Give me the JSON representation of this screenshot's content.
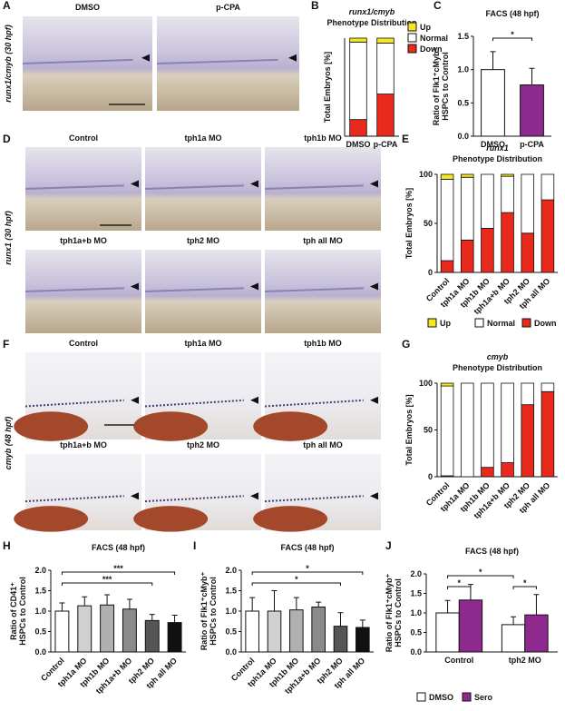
{
  "panel_letters": [
    "A",
    "B",
    "C",
    "D",
    "E",
    "F",
    "G",
    "H",
    "I",
    "J"
  ],
  "image_panels": [
    {
      "ylabel": "runx1/cmyb (30 hpf)",
      "labels": [
        "DMSO",
        "p-CPA"
      ]
    },
    {
      "ylabel": "runx1 (30 hpf)",
      "labels": [
        "Control",
        "tph1a MO",
        "tph1b MO",
        "tph1a+b MO",
        "tph2 MO",
        "tph all MO"
      ]
    },
    {
      "ylabel": "cmyb (48 hpf)",
      "labels": [
        "Control",
        "tph1a MO",
        "tph1b MO",
        "tph1a+b MO",
        "tph2 MO",
        "tph all MO"
      ]
    }
  ],
  "chart_data": [
    {
      "type": "stacked_bar",
      "title": "runx1/cmyb",
      "subtitle": "Phenotype Distribution",
      "ylabel": "Total Embryos [%]",
      "categories": [
        "DMSO",
        "p-CPA"
      ],
      "series": [
        {
          "name": "Down",
          "color": "#e8291c",
          "values": [
            17,
            43
          ]
        },
        {
          "name": "Normal",
          "color": "#ffffff",
          "values": [
            79,
            52
          ]
        },
        {
          "name": "Up",
          "color": "#f5e61e",
          "values": [
            4,
            5
          ]
        }
      ],
      "ylim": [
        0,
        100
      ],
      "legend": "right"
    },
    {
      "type": "bar",
      "title": "FACS (48 hpf)",
      "ylabel": [
        "Ratio of Flk1⁺cMyb⁺",
        "HSPCs to Control"
      ],
      "categories": [
        "DMSO",
        "p-CPA"
      ],
      "values": [
        1.0,
        0.77
      ],
      "errors": [
        0.27,
        0.25
      ],
      "colors": [
        "#ffffff",
        "#8e2a8e"
      ],
      "ylim": [
        0,
        1.5
      ],
      "yticks": [
        {
          "value": 0,
          "label": "0.0"
        },
        0.5,
        {
          "value": 1,
          "label": "1.0"
        },
        1.5
      ],
      "significance": [
        {
          "label": "*",
          "between": [
            "DMSO",
            "p-CPA"
          ]
        }
      ]
    },
    {
      "type": "stacked_bar",
      "title": "runx1",
      "subtitle": "Phenotype Distribution",
      "ylabel": "Total Embryos [%]",
      "categories": [
        "Control",
        "tph1a MO",
        "tph1b MO",
        "tph1a+b MO",
        "tph2 MO",
        "tph all MO"
      ],
      "series": [
        {
          "name": "Down",
          "color": "#e8291c",
          "values": [
            12,
            33,
            45,
            61,
            40,
            74
          ]
        },
        {
          "name": "Normal",
          "color": "#ffffff",
          "values": [
            83,
            64,
            55,
            37,
            60,
            26
          ]
        },
        {
          "name": "Up",
          "color": "#f5e61e",
          "values": [
            5,
            3,
            0,
            2,
            0,
            0
          ]
        }
      ],
      "ylim": [
        0,
        100
      ],
      "yticks": [
        0,
        50,
        100
      ],
      "legend": "bottom"
    },
    {
      "type": "stacked_bar",
      "title": "cmyb",
      "subtitle": "Phenotype Distribution",
      "ylabel": "Total Embryos [%]",
      "categories": [
        "Control",
        "tph1a MO",
        "tph1b MO",
        "tph1a+b MO",
        "tph2 MO",
        "tph all MO"
      ],
      "series": [
        {
          "name": "Down",
          "color": "#e8291c",
          "values": [
            1,
            0,
            10,
            15,
            77,
            91
          ]
        },
        {
          "name": "Normal",
          "color": "#ffffff",
          "values": [
            96,
            100,
            90,
            85,
            23,
            9
          ]
        },
        {
          "name": "Up",
          "color": "#f5e61e",
          "values": [
            3,
            0,
            0,
            0,
            0,
            0
          ]
        }
      ],
      "ylim": [
        0,
        100
      ],
      "yticks": [
        0,
        50,
        100
      ]
    },
    {
      "type": "bar",
      "title": "FACS (48 hpf)",
      "ylabel": [
        "Ratio of CD41⁺",
        "HSPCs to Control"
      ],
      "categories": [
        "Control",
        "tph1a MO",
        "tph1b MO",
        "tph1a+b MO",
        "tph2 MO",
        "tph all MO"
      ],
      "values": [
        1.0,
        1.13,
        1.15,
        1.05,
        0.77,
        0.72
      ],
      "errors": [
        0.2,
        0.22,
        0.25,
        0.24,
        0.15,
        0.18
      ],
      "colors": [
        "#ffffff",
        "#d0d0d0",
        "#b0b0b0",
        "#8a8a8a",
        "#555555",
        "#111111"
      ],
      "ylim": [
        0,
        2
      ],
      "yticks": [
        {
          "value": 0,
          "label": "0.0"
        },
        0.5,
        {
          "value": 1,
          "label": "1.0"
        },
        1.5,
        {
          "value": 2,
          "label": "2.0"
        }
      ],
      "significance": [
        {
          "label": "***",
          "between": [
            "Control",
            "tph2 MO"
          ]
        },
        {
          "label": "***",
          "between": [
            "Control",
            "tph all MO"
          ]
        }
      ]
    },
    {
      "type": "bar",
      "title": "FACS (48 hpf)",
      "ylabel": [
        "Ratio of Flk1⁺cMyb⁺",
        "HSPCs to Control"
      ],
      "categories": [
        "Control",
        "tph1a MO",
        "tph1b MO",
        "tph1a+b MO",
        "tph2 MO",
        "tph all MO"
      ],
      "values": [
        1.0,
        1.0,
        1.03,
        1.1,
        0.63,
        0.6
      ],
      "errors": [
        0.33,
        0.5,
        0.3,
        0.12,
        0.33,
        0.18
      ],
      "colors": [
        "#ffffff",
        "#d0d0d0",
        "#b0b0b0",
        "#8a8a8a",
        "#555555",
        "#111111"
      ],
      "ylim": [
        0,
        2
      ],
      "yticks": [
        {
          "value": 0,
          "label": "0.0"
        },
        0.5,
        {
          "value": 1,
          "label": "1.0"
        },
        1.5,
        {
          "value": 2,
          "label": "2.0"
        }
      ],
      "significance": [
        {
          "label": "*",
          "between": [
            "Control",
            "tph2 MO"
          ]
        },
        {
          "label": "*",
          "between": [
            "Control",
            "tph all MO"
          ]
        }
      ]
    },
    {
      "type": "grouped_bar",
      "title": "FACS (48 hpf)",
      "ylabel": [
        "Ratio of Flk1⁺cMyb⁺",
        "HSPCs to Control"
      ],
      "categories": [
        "Control",
        "tph2 MO"
      ],
      "series": [
        {
          "name": "DMSO",
          "color": "#ffffff",
          "values": [
            1.0,
            0.7
          ],
          "errors": [
            0.32,
            0.2
          ]
        },
        {
          "name": "Sero",
          "color": "#8e2a8e",
          "values": [
            1.33,
            0.95
          ],
          "errors": [
            0.4,
            0.52
          ]
        }
      ],
      "ylim": [
        0,
        2
      ],
      "yticks": [
        {
          "value": 0,
          "label": "0.0"
        },
        0.5,
        {
          "value": 1,
          "label": "1.0"
        },
        1.5,
        {
          "value": 2,
          "label": "2.0"
        }
      ],
      "legend": "bottom",
      "significance": [
        {
          "label": "*",
          "between": [
            [
              "Control",
              "DMSO"
            ],
            [
              "Control",
              "Sero"
            ]
          ]
        },
        {
          "label": "*",
          "between": [
            [
              "tph2 MO",
              "DMSO"
            ],
            [
              "tph2 MO",
              "Sero"
            ]
          ]
        },
        {
          "label": "*",
          "between": [
            [
              "Control",
              "DMSO"
            ],
            [
              "tph2 MO",
              "DMSO"
            ]
          ]
        }
      ]
    }
  ]
}
